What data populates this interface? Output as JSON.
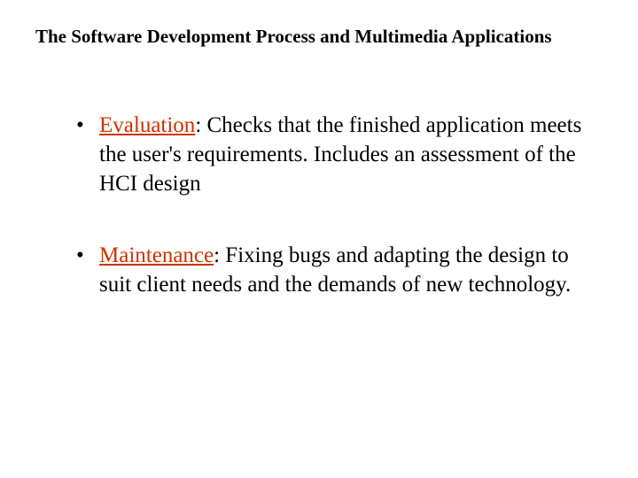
{
  "slide": {
    "title": "The Software Development Process and Multimedia Applications",
    "title_fontsize": 21,
    "title_color": "#000000",
    "background_color": "#ffffff",
    "bullets": [
      {
        "term": "Evaluation",
        "rest": ": Checks that the finished application meets the user's requirements. Includes an assessment of the HCI design"
      },
      {
        "term": "Maintenance",
        "rest": ": Fixing bugs and adapting the design to suit client needs and the demands of new technology."
      }
    ],
    "bullet_fontsize": 25,
    "term_color": "#cc3300",
    "body_color": "#000000"
  }
}
